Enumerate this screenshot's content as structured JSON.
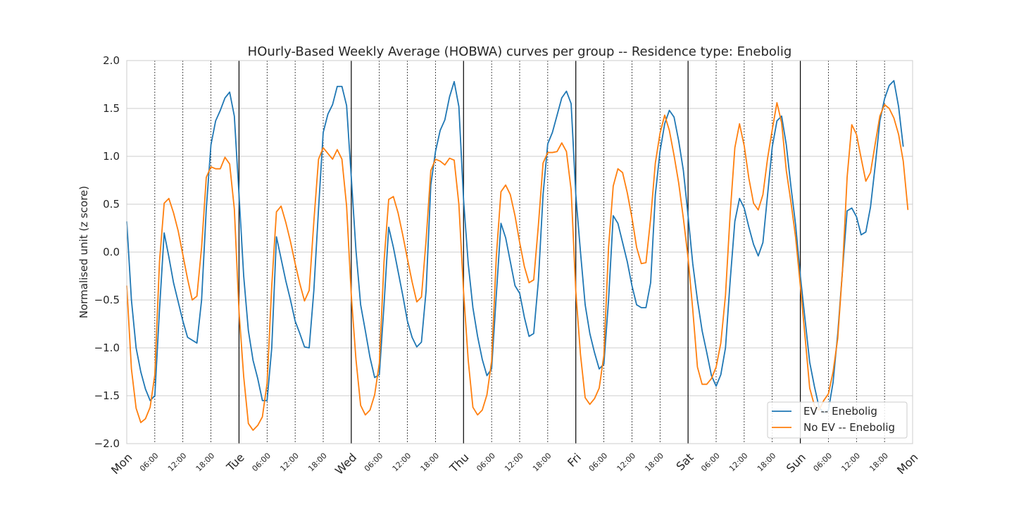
{
  "chart_data": {
    "type": "line",
    "title": "HOurly-Based Weekly Average (HOBWA) curves per group -- Residence type: Enebolig",
    "xlabel": "",
    "ylabel": "Normalised unit (z score)",
    "xlim": [
      0,
      168
    ],
    "ylim": [
      -2.0,
      2.0
    ],
    "yticks": [
      -2.0,
      -1.5,
      -1.0,
      -0.5,
      0.0,
      0.5,
      1.0,
      1.5,
      2.0
    ],
    "ytick_labels": [
      "−2.0",
      "−1.5",
      "−1.0",
      "−0.5",
      "0.0",
      "0.5",
      "1.0",
      "1.5",
      "2.0"
    ],
    "major_ticks": [
      {
        "x": 0,
        "label": "Mon"
      },
      {
        "x": 24,
        "label": "Tue"
      },
      {
        "x": 48,
        "label": "Wed"
      },
      {
        "x": 72,
        "label": "Thu"
      },
      {
        "x": 96,
        "label": "Fri"
      },
      {
        "x": 120,
        "label": "Sat"
      },
      {
        "x": 144,
        "label": "Sun"
      },
      {
        "x": 168,
        "label": "Mon"
      }
    ],
    "minor_tick_labels": [
      "06:00",
      "12:00",
      "18:00"
    ],
    "grid": true,
    "legend_position": "lower-right",
    "series": [
      {
        "name": "EV -- Enebolig",
        "color": "#1f77b4",
        "values": [
          0.32,
          -0.5,
          -1.0,
          -1.25,
          -1.43,
          -1.55,
          -1.5,
          -0.6,
          0.2,
          -0.05,
          -0.32,
          -0.52,
          -0.72,
          -0.89,
          -0.92,
          -0.95,
          -0.5,
          0.45,
          1.12,
          1.37,
          1.48,
          1.61,
          1.67,
          1.42,
          0.6,
          -0.25,
          -0.82,
          -1.13,
          -1.32,
          -1.55,
          -1.55,
          -1.0,
          0.16,
          -0.07,
          -0.3,
          -0.5,
          -0.72,
          -0.85,
          -0.99,
          -1.0,
          -0.4,
          0.45,
          1.25,
          1.44,
          1.54,
          1.73,
          1.73,
          1.53,
          0.78,
          0.02,
          -0.55,
          -0.82,
          -1.1,
          -1.31,
          -1.28,
          -0.55,
          0.26,
          0.05,
          -0.2,
          -0.45,
          -0.72,
          -0.89,
          -0.99,
          -0.94,
          -0.4,
          0.7,
          1.05,
          1.27,
          1.38,
          1.62,
          1.78,
          1.52,
          0.55,
          -0.12,
          -0.58,
          -0.88,
          -1.12,
          -1.29,
          -1.22,
          -0.45,
          0.3,
          0.15,
          -0.1,
          -0.35,
          -0.43,
          -0.68,
          -0.88,
          -0.85,
          -0.3,
          0.6,
          1.13,
          1.25,
          1.43,
          1.61,
          1.68,
          1.55,
          0.6,
          0.0,
          -0.55,
          -0.85,
          -1.05,
          -1.22,
          -1.17,
          -0.5,
          0.38,
          0.3,
          0.1,
          -0.1,
          -0.35,
          -0.55,
          -0.58,
          -0.58,
          -0.32,
          0.6,
          1.05,
          1.34,
          1.48,
          1.41,
          1.16,
          0.85,
          0.38,
          -0.12,
          -0.5,
          -0.82,
          -1.05,
          -1.29,
          -1.4,
          -1.28,
          -1.0,
          -0.3,
          0.32,
          0.56,
          0.46,
          0.26,
          0.08,
          -0.04,
          0.1,
          0.6,
          1.1,
          1.37,
          1.42,
          1.12,
          0.68,
          0.28,
          -0.25,
          -0.7,
          -1.15,
          -1.4,
          -1.62,
          -1.68,
          -1.65,
          -1.36,
          -0.85,
          -0.2,
          0.43,
          0.46,
          0.37,
          0.18,
          0.21,
          0.47,
          0.9,
          1.37,
          1.6,
          1.74,
          1.79,
          1.52,
          1.1
        ]
      },
      {
        "name": "No EV -- Enebolig",
        "color": "#ff7f0e",
        "values": [
          -0.35,
          -1.22,
          -1.63,
          -1.78,
          -1.74,
          -1.62,
          -1.28,
          -0.1,
          0.51,
          0.56,
          0.41,
          0.22,
          -0.03,
          -0.28,
          -0.5,
          -0.46,
          0.05,
          0.78,
          0.89,
          0.87,
          0.87,
          0.99,
          0.92,
          0.45,
          -0.62,
          -1.3,
          -1.79,
          -1.86,
          -1.81,
          -1.72,
          -1.37,
          -0.35,
          0.42,
          0.48,
          0.31,
          0.11,
          -0.12,
          -0.33,
          -0.51,
          -0.4,
          0.32,
          0.97,
          1.09,
          1.03,
          0.97,
          1.07,
          0.97,
          0.48,
          -0.45,
          -1.12,
          -1.6,
          -1.7,
          -1.65,
          -1.49,
          -1.16,
          -0.1,
          0.55,
          0.58,
          0.41,
          0.18,
          -0.07,
          -0.31,
          -0.52,
          -0.47,
          0.13,
          0.85,
          0.97,
          0.95,
          0.91,
          0.98,
          0.96,
          0.5,
          -0.41,
          -1.13,
          -1.62,
          -1.7,
          -1.65,
          -1.49,
          -1.14,
          -0.05,
          0.63,
          0.7,
          0.6,
          0.38,
          0.1,
          -0.15,
          -0.32,
          -0.29,
          0.28,
          0.93,
          1.04,
          1.04,
          1.05,
          1.14,
          1.05,
          0.65,
          -0.41,
          -1.07,
          -1.52,
          -1.59,
          -1.53,
          -1.42,
          -1.08,
          0.05,
          0.69,
          0.87,
          0.83,
          0.62,
          0.36,
          0.05,
          -0.12,
          -0.11,
          0.35,
          0.93,
          1.24,
          1.43,
          1.27,
          1.01,
          0.72,
          0.35,
          -0.06,
          -0.6,
          -1.2,
          -1.38,
          -1.38,
          -1.32,
          -1.2,
          -0.95,
          -0.45,
          0.4,
          1.09,
          1.34,
          1.11,
          0.77,
          0.51,
          0.44,
          0.6,
          0.98,
          1.28,
          1.56,
          1.35,
          0.85,
          0.52,
          0.15,
          -0.35,
          -0.88,
          -1.42,
          -1.6,
          -1.65,
          -1.55,
          -1.48,
          -1.25,
          -0.9,
          -0.2,
          0.78,
          1.33,
          1.23,
          0.98,
          0.74,
          0.83,
          1.13,
          1.42,
          1.54,
          1.5,
          1.4,
          1.23,
          0.95,
          0.44
        ]
      }
    ]
  }
}
